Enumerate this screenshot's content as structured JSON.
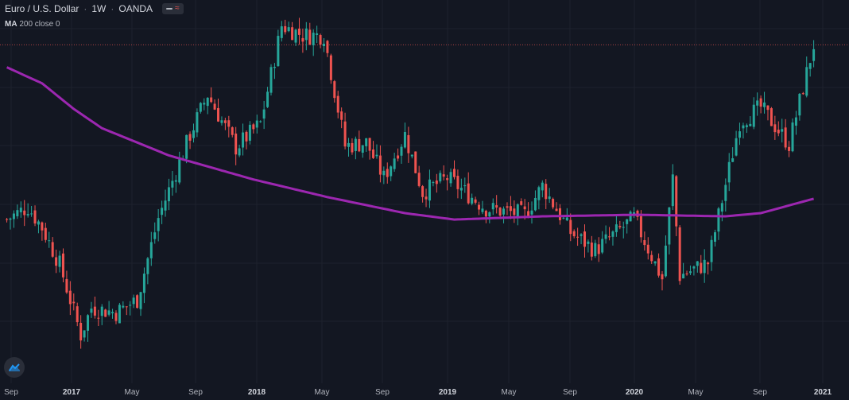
{
  "header": {
    "symbol": "Euro / U.S. Dollar",
    "interval": "1W",
    "broker": "OANDA",
    "separator": "·",
    "slash": "/"
  },
  "indicator": {
    "name": "MA",
    "params": "200 close 0"
  },
  "colors": {
    "background": "#131722",
    "up": "#26a69a",
    "down": "#ef5350",
    "ma": "#9c27b0",
    "grid": "#1e222d",
    "price_line": "#ef5350"
  },
  "chart_data": {
    "type": "candlestick",
    "title": "Euro / U.S. Dollar · 1W · OANDA",
    "x_ticks": [
      "Sep",
      "2017",
      "May",
      "Sep",
      "2018",
      "May",
      "Sep",
      "2019",
      "May",
      "Sep",
      "2020",
      "May",
      "Sep",
      "2021"
    ],
    "x_tick_bold": [
      "2017",
      "2018",
      "2019",
      "2020",
      "2021"
    ],
    "x_range": [
      "2016-08",
      "2021-01"
    ],
    "y_range": [
      1.03,
      1.25
    ],
    "grid": true,
    "last_price_line": true,
    "ma": {
      "name": "MA 200 close",
      "anchors": [
        [
          "2016-07-25",
          1.212
        ],
        [
          "2016-10-03",
          1.202
        ],
        [
          "2016-12-05",
          1.186
        ],
        [
          "2017-01-30",
          1.174
        ],
        [
          "2017-06-12",
          1.157
        ],
        [
          "2017-11-27",
          1.142
        ],
        [
          "2018-04-23",
          1.131
        ],
        [
          "2018-09-24",
          1.121
        ],
        [
          "2018-12-31",
          1.117
        ],
        [
          "2019-06-24",
          1.119
        ],
        [
          "2019-12-30",
          1.12
        ],
        [
          "2020-06-22",
          1.119
        ],
        [
          "2020-08-31",
          1.121
        ],
        [
          "2020-12-14",
          1.13
        ]
      ]
    },
    "close_anchors": [
      [
        "2016-07-25",
        1.117
      ],
      [
        "2016-09-05",
        1.125
      ],
      [
        "2016-10-03",
        1.112
      ],
      [
        "2016-11-07",
        1.089
      ],
      [
        "2016-12-19",
        1.045
      ],
      [
        "2017-01-09",
        1.062
      ],
      [
        "2017-02-27",
        1.059
      ],
      [
        "2017-04-10",
        1.067
      ],
      [
        "2017-05-22",
        1.118
      ],
      [
        "2017-07-24",
        1.17
      ],
      [
        "2017-08-28",
        1.195
      ],
      [
        "2017-10-23",
        1.162
      ],
      [
        "2017-12-11",
        1.177
      ],
      [
        "2018-01-22",
        1.238
      ],
      [
        "2018-03-05",
        1.232
      ],
      [
        "2018-04-16",
        1.232
      ],
      [
        "2018-05-28",
        1.163
      ],
      [
        "2018-07-09",
        1.165
      ],
      [
        "2018-08-13",
        1.143
      ],
      [
        "2018-09-24",
        1.17
      ],
      [
        "2018-10-29",
        1.134
      ],
      [
        "2018-12-17",
        1.143
      ],
      [
        "2019-03-04",
        1.124
      ],
      [
        "2019-05-20",
        1.12
      ],
      [
        "2019-06-24",
        1.138
      ],
      [
        "2019-08-19",
        1.109
      ],
      [
        "2019-10-07",
        1.098
      ],
      [
        "2019-12-23",
        1.118
      ],
      [
        "2020-02-17",
        1.08
      ],
      [
        "2020-03-09",
        1.143
      ],
      [
        "2020-03-23",
        1.082
      ],
      [
        "2020-05-18",
        1.09
      ],
      [
        "2020-07-20",
        1.178
      ],
      [
        "2020-08-31",
        1.187
      ],
      [
        "2020-10-26",
        1.164
      ],
      [
        "2020-12-14",
        1.226
      ]
    ]
  }
}
